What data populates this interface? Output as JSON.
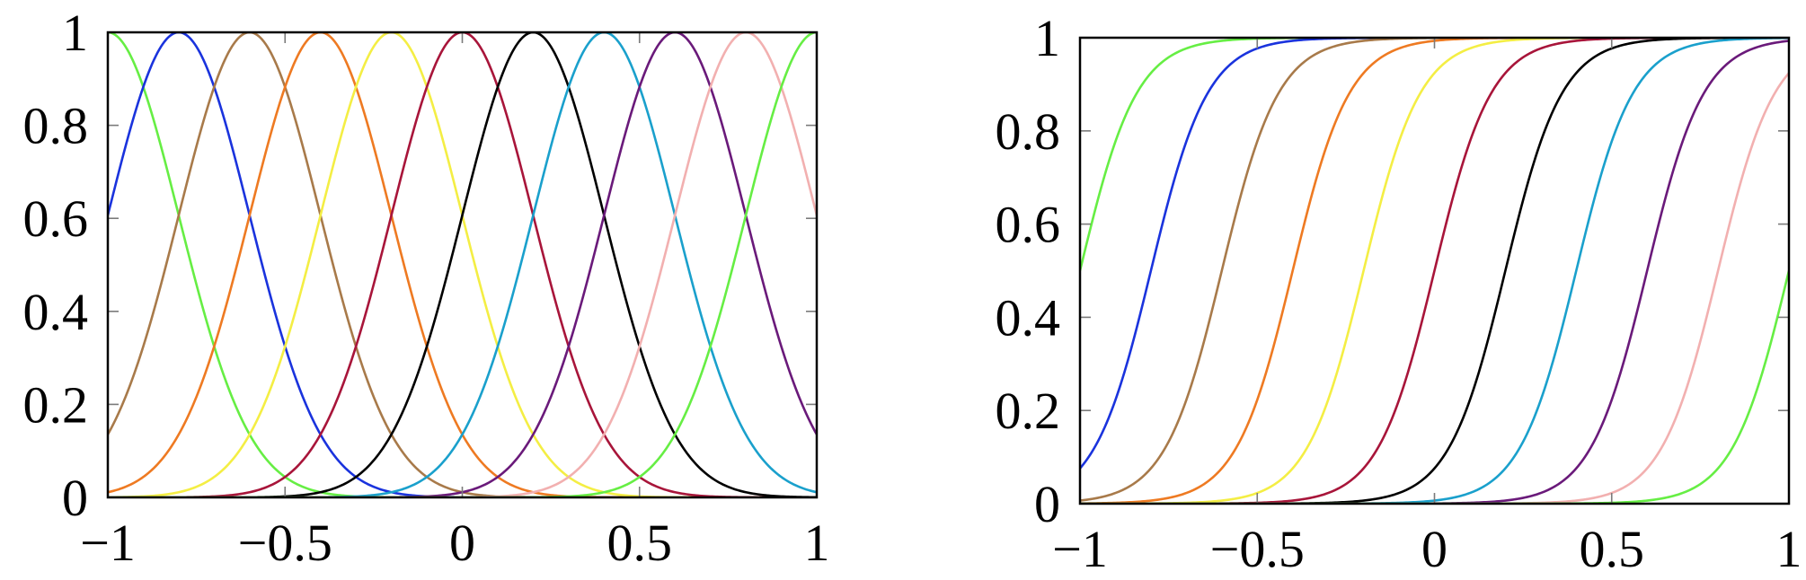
{
  "chart_data": [
    {
      "type": "line",
      "function": "gaussian",
      "sigma": 0.2,
      "xlim": [
        -1,
        1
      ],
      "ylim": [
        0,
        1
      ],
      "grid": false,
      "xticks": [
        "−1",
        "−0.5",
        "0",
        "0.5",
        "1"
      ],
      "xtick_values": [
        -1,
        -0.5,
        0,
        0.5,
        1
      ],
      "yticks": [
        "0",
        "0.2",
        "0.4",
        "0.6",
        "0.8",
        "1"
      ],
      "ytick_values": [
        0,
        0.2,
        0.4,
        0.6,
        0.8,
        1
      ],
      "series": [
        {
          "center": -1.0,
          "color": "#66ee44"
        },
        {
          "center": -0.8,
          "color": "#1a33dd"
        },
        {
          "center": -0.6,
          "color": "#a87a4a"
        },
        {
          "center": -0.4,
          "color": "#ee7a22"
        },
        {
          "center": -0.2,
          "color": "#f4ee44"
        },
        {
          "center": 0.0,
          "color": "#a8153a"
        },
        {
          "center": 0.2,
          "color": "#000000"
        },
        {
          "center": 0.4,
          "color": "#1aa0cc"
        },
        {
          "center": 0.6,
          "color": "#6a1a7a"
        },
        {
          "center": 0.8,
          "color": "#f2b0b0"
        },
        {
          "center": 1.0,
          "color": "#66ee44"
        }
      ]
    },
    {
      "type": "line",
      "function": "sigmoid",
      "scale": 0.08,
      "xlim": [
        -1,
        1
      ],
      "ylim": [
        0,
        1
      ],
      "grid": false,
      "xticks": [
        "−1",
        "−0.5",
        "0",
        "0.5",
        "1"
      ],
      "xtick_values": [
        -1,
        -0.5,
        0,
        0.5,
        1
      ],
      "yticks": [
        "0",
        "0.2",
        "0.4",
        "0.6",
        "0.8",
        "1"
      ],
      "ytick_values": [
        0,
        0.2,
        0.4,
        0.6,
        0.8,
        1
      ],
      "series": [
        {
          "center": -1.0,
          "color": "#66ee44"
        },
        {
          "center": -0.8,
          "color": "#1a33dd"
        },
        {
          "center": -0.6,
          "color": "#a87a4a"
        },
        {
          "center": -0.4,
          "color": "#ee7a22"
        },
        {
          "center": -0.2,
          "color": "#f4ee44"
        },
        {
          "center": 0.0,
          "color": "#a8153a"
        },
        {
          "center": 0.2,
          "color": "#000000"
        },
        {
          "center": 0.4,
          "color": "#1aa0cc"
        },
        {
          "center": 0.6,
          "color": "#6a1a7a"
        },
        {
          "center": 0.8,
          "color": "#f2b0b0"
        },
        {
          "center": 1.0,
          "color": "#66ee44"
        }
      ]
    }
  ]
}
